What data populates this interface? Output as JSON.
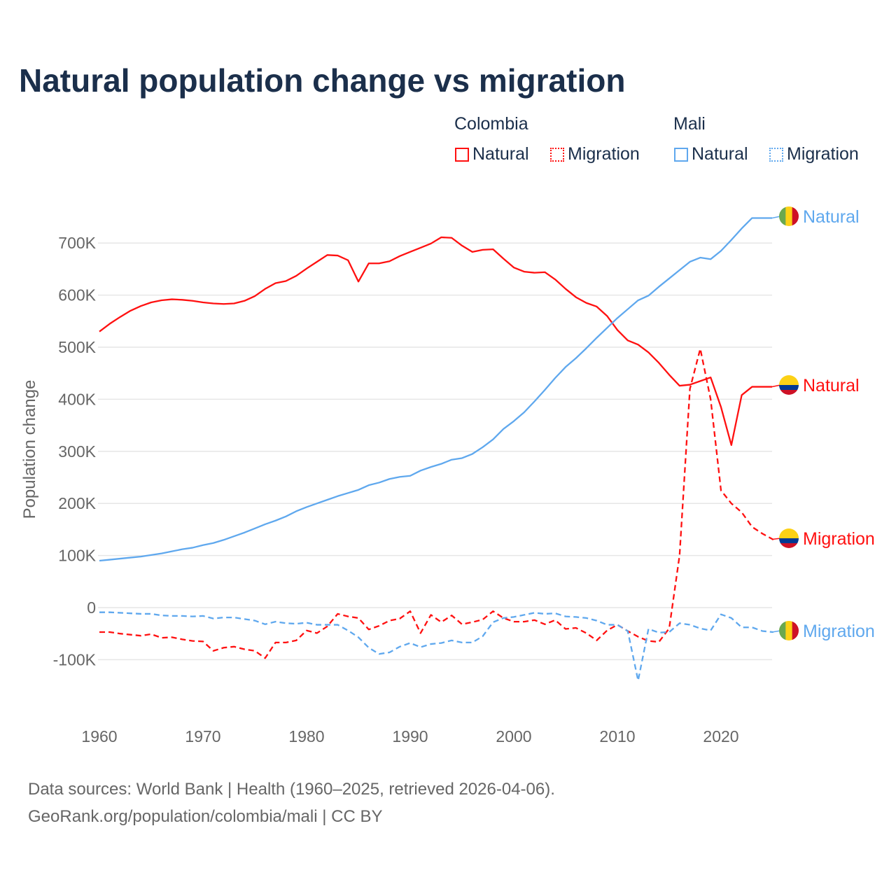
{
  "chart_data": {
    "type": "line",
    "title": "Natural population change vs migration",
    "xlabel": "",
    "ylabel": "Population change",
    "xlim": [
      1960,
      2025
    ],
    "ylim": [
      -160000,
      760000
    ],
    "x_ticks": [
      "1960",
      "1970",
      "1980",
      "1990",
      "2000",
      "2010",
      "2020"
    ],
    "y_ticks": [
      {
        "v": 700000,
        "label": "700K"
      },
      {
        "v": 600000,
        "label": "600K"
      },
      {
        "v": 500000,
        "label": "500K"
      },
      {
        "v": 400000,
        "label": "400K"
      },
      {
        "v": 300000,
        "label": "300K"
      },
      {
        "v": 200000,
        "label": "200K"
      },
      {
        "v": 100000,
        "label": "100K"
      },
      {
        "v": 0,
        "label": "0"
      },
      {
        "v": -100000,
        "label": "-100K"
      }
    ],
    "grid": true,
    "legend": {
      "placement": "top-right",
      "groups": [
        {
          "name": "Colombia",
          "items": [
            "Natural",
            "Migration"
          ]
        },
        {
          "name": "Mali",
          "items": [
            "Natural",
            "Migration"
          ]
        }
      ]
    },
    "series": [
      {
        "name": "Natural",
        "country": "Colombia",
        "color": "#ff1010",
        "dash": false,
        "start": 1960,
        "values_k": [
          530,
          545,
          558,
          570,
          579,
          586,
          590,
          592,
          591,
          589,
          586,
          584,
          583,
          584,
          589,
          598,
          612,
          623,
          627,
          637,
          651,
          664,
          677,
          676,
          667,
          626,
          661,
          661,
          665,
          675,
          683,
          691,
          699,
          711,
          710,
          695,
          683,
          687,
          688,
          670,
          653,
          645,
          643,
          644,
          630,
          612,
          596,
          585,
          578,
          560,
          533,
          513,
          505,
          490,
          470,
          447,
          426,
          428,
          435,
          442,
          385,
          312,
          408,
          424
        ]
      },
      {
        "name": "Migration",
        "country": "Colombia",
        "color": "#ff1010",
        "dash": true,
        "start": 1960,
        "values_k": [
          -47,
          -47,
          -50,
          -52,
          -54,
          -51,
          -58,
          -57,
          -61,
          -64,
          -65,
          -83,
          -77,
          -75,
          -80,
          -83,
          -97,
          -67,
          -67,
          -63,
          -44,
          -49,
          -36,
          -12,
          -17,
          -20,
          -42,
          -35,
          -25,
          -21,
          -7,
          -49,
          -14,
          -28,
          -15,
          -32,
          -28,
          -23,
          -7,
          -20,
          -27,
          -27,
          -24,
          -32,
          -24,
          -41,
          -39,
          -49,
          -63,
          -44,
          -33,
          -45,
          -56,
          -64,
          -66,
          -40,
          100,
          420,
          497,
          400,
          225,
          200,
          183,
          155,
          142,
          131
        ]
      },
      {
        "name": "Natural",
        "country": "Mali",
        "color": "#5fa8ee",
        "dash": false,
        "start": 1960,
        "values_k": [
          90,
          92,
          94,
          96,
          98,
          101,
          104,
          108,
          112,
          115,
          120,
          124,
          130,
          137,
          144,
          152,
          160,
          167,
          175,
          185,
          193,
          200,
          207,
          214,
          220,
          226,
          235,
          240,
          247,
          251,
          253,
          263,
          270,
          276,
          284,
          287,
          295,
          308,
          323,
          343,
          358,
          375,
          396,
          418,
          441,
          462,
          479,
          498,
          518,
          537,
          556,
          573,
          590,
          599,
          616,
          632,
          648,
          664,
          672,
          669,
          685,
          706,
          728,
          748
        ]
      },
      {
        "name": "Migration",
        "country": "Mali",
        "color": "#5fa8ee",
        "dash": true,
        "start": 1960,
        "values_k": [
          -9,
          -9,
          -10,
          -11,
          -12,
          -12,
          -15,
          -16,
          -16,
          -17,
          -16,
          -21,
          -19,
          -19,
          -22,
          -25,
          -32,
          -27,
          -30,
          -31,
          -29,
          -33,
          -33,
          -33,
          -44,
          -57,
          -77,
          -89,
          -86,
          -75,
          -68,
          -76,
          -70,
          -68,
          -63,
          -67,
          -67,
          -55,
          -28,
          -20,
          -18,
          -14,
          -10,
          -12,
          -11,
          -17,
          -18,
          -20,
          -25,
          -33,
          -33,
          -45,
          -140,
          -41,
          -48,
          -47,
          -30,
          -33,
          -40,
          -44,
          -13,
          -20,
          -38,
          -38,
          -45,
          -47
        ]
      }
    ],
    "colors": {
      "colombia": "#ff1010",
      "mali": "#5fa8ee",
      "title": "#1b2f4b"
    }
  },
  "source": {
    "line1": "Data sources: World Bank | Health (1960–2025, retrieved 2026-04-06).",
    "line2": "GeoRank.org/population/colombia/mali | CC BY"
  }
}
